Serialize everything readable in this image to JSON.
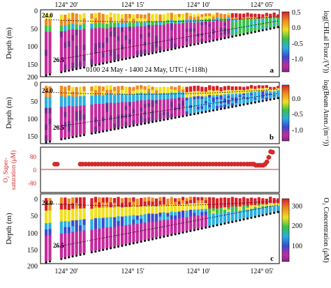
{
  "chart_data": [
    {
      "type": "heatmap",
      "panel_letter": "a",
      "ylabel": "Depth (m)",
      "y_ticks": [
        "0",
        "50",
        "100",
        "150",
        "200"
      ],
      "ylim": [
        0,
        200
      ],
      "x_ticks_top": [
        "124° 20'",
        "124° 15'",
        "124° 10'",
        "124° 05'"
      ],
      "annotation": "0100 24 May - 1400 24 May, UTC (+118h)",
      "contour_labels": [
        "24.0",
        "26.5"
      ],
      "colorbar": {
        "label": "log(CHLal Fluor./(V))",
        "ticks": [
          "0.5",
          "0.0",
          "-0.5",
          "-1.0"
        ],
        "range": [
          -1.3,
          0.6
        ]
      }
    },
    {
      "type": "heatmap",
      "panel_letter": "b",
      "ylabel": "Depth (m)",
      "y_ticks": [
        "0",
        "50",
        "100",
        "150"
      ],
      "ylim": [
        0,
        170
      ],
      "contour_labels": [
        "24.0",
        "26.5"
      ],
      "colorbar": {
        "label": "log(Beam Atten./(m⁻¹))",
        "ticks": [
          "0.0",
          "-0.5",
          "-1.0"
        ],
        "range": [
          -1.2,
          0.2
        ]
      }
    },
    {
      "type": "scatter",
      "ylabel_line1": "O₂ Super-",
      "ylabel_line2": "saturation (μM)",
      "y_ticks": [
        "80",
        "0",
        "-80"
      ],
      "ylim": [
        -100,
        100
      ],
      "x": [
        124.322,
        124.318,
        124.281,
        124.277,
        124.272,
        124.267,
        124.262,
        124.257,
        124.252,
        124.247,
        124.242,
        124.237,
        124.232,
        124.227,
        124.222,
        124.217,
        124.212,
        124.207,
        124.202,
        124.197,
        124.192,
        124.187,
        124.182,
        124.177,
        124.172,
        124.167,
        124.162,
        124.157,
        124.152,
        124.147,
        124.142,
        124.137,
        124.132,
        124.127,
        124.122,
        124.117,
        124.112,
        124.107,
        124.102,
        124.097,
        124.092,
        124.087,
        124.082,
        124.077,
        124.072,
        124.067,
        124.062,
        124.057,
        124.052,
        124.047,
        124.042,
        124.037,
        124.032,
        124.027,
        124.022,
        124.017,
        124.012,
        124.008,
        124.004,
        124.001,
        123.998,
        123.995,
        123.992,
        123.989,
        123.986,
        123.983,
        123.98,
        123.977,
        123.974,
        123.971
      ],
      "values": [
        25,
        25,
        25,
        25,
        25,
        25,
        25,
        25,
        25,
        25,
        25,
        25,
        25,
        25,
        25,
        25,
        25,
        25,
        25,
        25,
        25,
        25,
        25,
        25,
        25,
        25,
        25,
        25,
        25,
        25,
        25,
        25,
        25,
        25,
        25,
        25,
        25,
        25,
        25,
        25,
        25,
        25,
        25,
        25,
        25,
        25,
        25,
        25,
        25,
        25,
        25,
        25,
        25,
        25,
        25,
        25,
        25,
        25,
        25,
        25,
        20,
        20,
        20,
        20,
        20,
        25,
        35,
        55,
        80,
        78
      ],
      "color": "#d42a2a"
    },
    {
      "type": "heatmap",
      "panel_letter": "c",
      "ylabel": "Depth (m)",
      "y_ticks": [
        "0",
        "50",
        "100",
        "150",
        "200"
      ],
      "ylim": [
        0,
        200
      ],
      "x_ticks_bottom": [
        "124° 20'",
        "124° 15'",
        "124° 10'",
        "124° 05'"
      ],
      "contour_labels": [
        "24.0",
        "26.5"
      ],
      "colorbar": {
        "label": "O₂ Concentration (μM)",
        "ticks": [
          "300",
          "200",
          "100"
        ],
        "range": [
          40,
          320
        ]
      }
    }
  ]
}
